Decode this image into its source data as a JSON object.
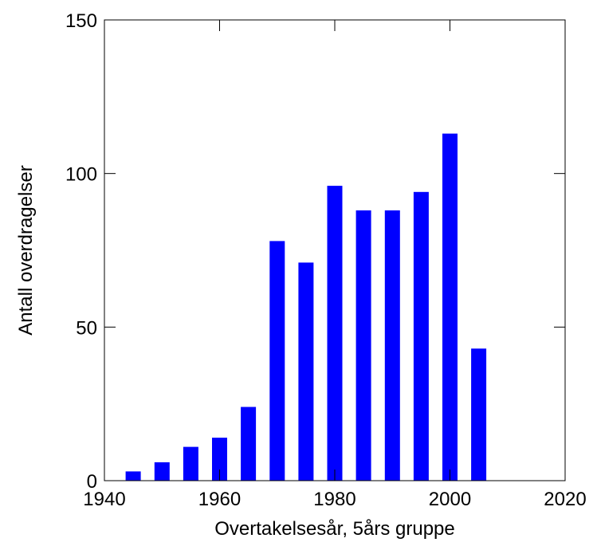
{
  "chart_data": {
    "type": "bar",
    "xlabel": "Overtakelsesår, 5års gruppe",
    "ylabel": "Antall overdragelser",
    "xlim": [
      1940,
      2020
    ],
    "ylim": [
      0,
      150
    ],
    "x_ticks": [
      1940,
      1960,
      1980,
      2000,
      2020
    ],
    "y_ticks": [
      0,
      50,
      100,
      150
    ],
    "x": [
      1945,
      1950,
      1955,
      1960,
      1965,
      1970,
      1975,
      1980,
      1985,
      1990,
      1995,
      2000,
      2005
    ],
    "values": [
      3,
      6,
      11,
      14,
      24,
      78,
      71,
      96,
      88,
      88,
      94,
      113,
      43
    ],
    "bar_color": "#0000ff",
    "grid": false,
    "legend": "none"
  }
}
